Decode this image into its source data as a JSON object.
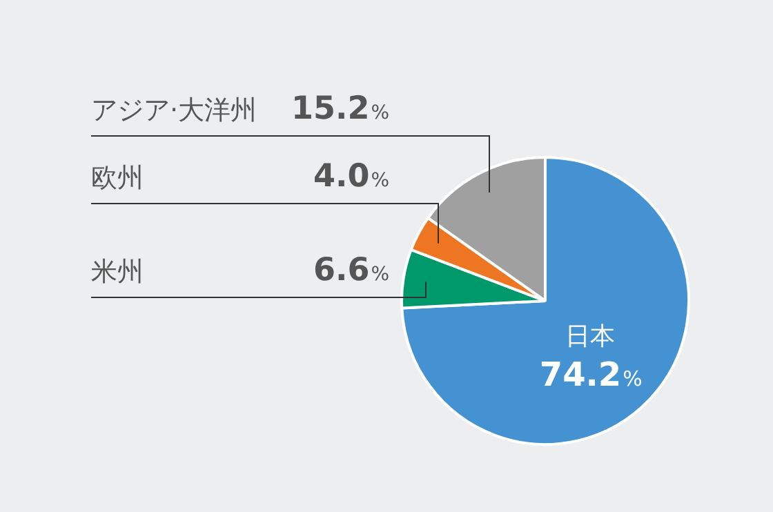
{
  "chart_data": {
    "type": "pie",
    "categories": [
      "日本",
      "米州",
      "欧州",
      "アジア·大洋州"
    ],
    "values": [
      74.2,
      6.6,
      4.0,
      15.2
    ],
    "colors": [
      "#4592d3",
      "#00996b",
      "#ee7623",
      "#a0a0a0"
    ],
    "value_labels": [
      "74.2%",
      "6.6%",
      "4.0%",
      "15.2%"
    ]
  }
}
